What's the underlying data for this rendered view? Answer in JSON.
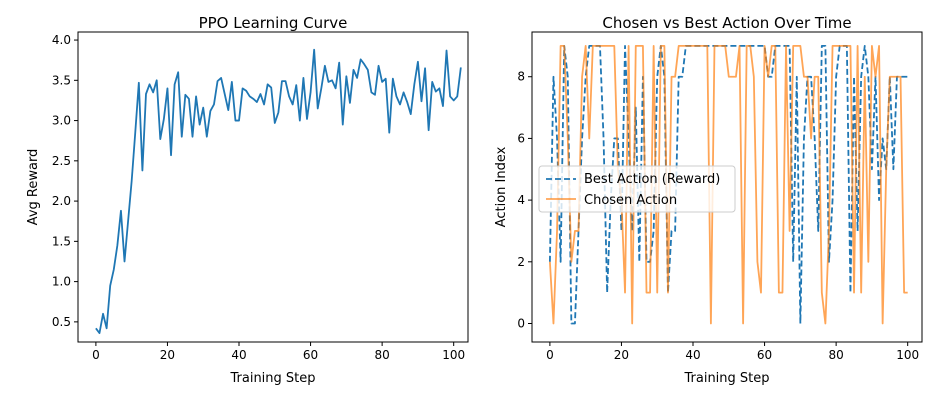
{
  "chart_data": [
    {
      "type": "line",
      "title": "PPO Learning Curve",
      "xlabel": "Training Step",
      "ylabel": "Avg Reward",
      "xlim": [
        -5,
        104
      ],
      "ylim": [
        0.25,
        4.1
      ],
      "xticks": [
        0,
        20,
        40,
        60,
        80,
        100
      ],
      "yticks": [
        0.5,
        1.0,
        1.5,
        2.0,
        2.5,
        3.0,
        3.5,
        4.0
      ],
      "ytick_labels": [
        "0.5",
        "1.0",
        "1.5",
        "2.0",
        "2.5",
        "3.0",
        "3.5",
        "4.0"
      ],
      "grid": false,
      "series": [
        {
          "color": "#1f77b4",
          "values": [
            0.42,
            0.36,
            0.6,
            0.42,
            0.95,
            1.15,
            1.45,
            1.88,
            1.25,
            1.75,
            2.25,
            2.85,
            3.47,
            2.38,
            3.33,
            3.45,
            3.35,
            3.5,
            2.77,
            3.02,
            3.4,
            2.57,
            3.45,
            3.6,
            2.8,
            3.32,
            3.27,
            2.8,
            3.3,
            2.95,
            3.16,
            2.8,
            3.12,
            3.2,
            3.49,
            3.53,
            3.33,
            3.13,
            3.48,
            3.0,
            3.0,
            3.4,
            3.37,
            3.3,
            3.27,
            3.23,
            3.33,
            3.2,
            3.45,
            3.41,
            2.97,
            3.1,
            3.49,
            3.49,
            3.3,
            3.2,
            3.44,
            3.0,
            3.53,
            3.02,
            3.35,
            3.88,
            3.15,
            3.4,
            3.68,
            3.48,
            3.5,
            3.4,
            3.72,
            2.95,
            3.55,
            3.22,
            3.63,
            3.53,
            3.76,
            3.7,
            3.63,
            3.35,
            3.32,
            3.68,
            3.48,
            3.52,
            2.85,
            3.52,
            3.3,
            3.2,
            3.35,
            3.23,
            3.08,
            3.45,
            3.73,
            3.24,
            3.65,
            2.88,
            3.48,
            3.36,
            3.4,
            3.18,
            3.87,
            3.3,
            3.25,
            3.3,
            3.66
          ]
        }
      ]
    },
    {
      "type": "line",
      "title": "Chosen vs Best Action Over Time",
      "xlabel": "Training Step",
      "ylabel": "Action Index",
      "xlim": [
        -5,
        104
      ],
      "ylim": [
        -0.6,
        9.45
      ],
      "xticks": [
        0,
        20,
        40,
        60,
        80,
        100
      ],
      "yticks": [
        0,
        2,
        4,
        6,
        8
      ],
      "grid": false,
      "legend_position": "center-left",
      "series": [
        {
          "name": "Best Action (Reward)",
          "color": "#1f77b4",
          "style": "dashed",
          "values": [
            2,
            8,
            6,
            2,
            9,
            8,
            0,
            0,
            3,
            6,
            8,
            9,
            9,
            9,
            9,
            6,
            1,
            4,
            6,
            6,
            3,
            9,
            6,
            3,
            7,
            2,
            8,
            2,
            2,
            3,
            8,
            9,
            8,
            1,
            3,
            3,
            8,
            8,
            9,
            9,
            9,
            9,
            9,
            9,
            9,
            9,
            9,
            9,
            9,
            9,
            9,
            9,
            9,
            9,
            9,
            9,
            9,
            9,
            9,
            9,
            9,
            8,
            8,
            9,
            9,
            9,
            9,
            9,
            2,
            8,
            0,
            6,
            8,
            8,
            6,
            3,
            9,
            9,
            2,
            4,
            8,
            9,
            9,
            9,
            1,
            8,
            3,
            8,
            9,
            8,
            5,
            8,
            4,
            6,
            5,
            8,
            5,
            8,
            8,
            8,
            8
          ]
        },
        {
          "name": "Chosen Action",
          "color": "#ff7f0e",
          "style": "solid",
          "values": [
            2,
            0,
            3,
            9,
            9,
            6,
            2,
            3,
            3,
            8,
            9,
            6,
            9,
            9,
            9,
            9,
            9,
            9,
            9,
            5,
            4,
            1,
            9,
            0,
            9,
            9,
            9,
            1,
            1,
            9,
            1,
            9,
            9,
            1,
            8,
            8,
            9,
            9,
            9,
            9,
            9,
            9,
            9,
            9,
            9,
            0,
            9,
            9,
            9,
            9,
            8,
            8,
            8,
            9,
            0,
            9,
            9,
            8,
            2,
            1,
            9,
            8,
            9,
            9,
            1,
            1,
            9,
            3,
            9,
            9,
            9,
            8,
            8,
            6,
            8,
            8,
            1,
            0,
            3,
            9,
            9,
            9,
            9,
            9,
            9,
            1,
            9,
            1,
            8,
            2,
            9,
            8,
            9,
            0,
            5,
            8,
            8,
            8,
            8,
            1,
            1
          ]
        }
      ]
    }
  ]
}
